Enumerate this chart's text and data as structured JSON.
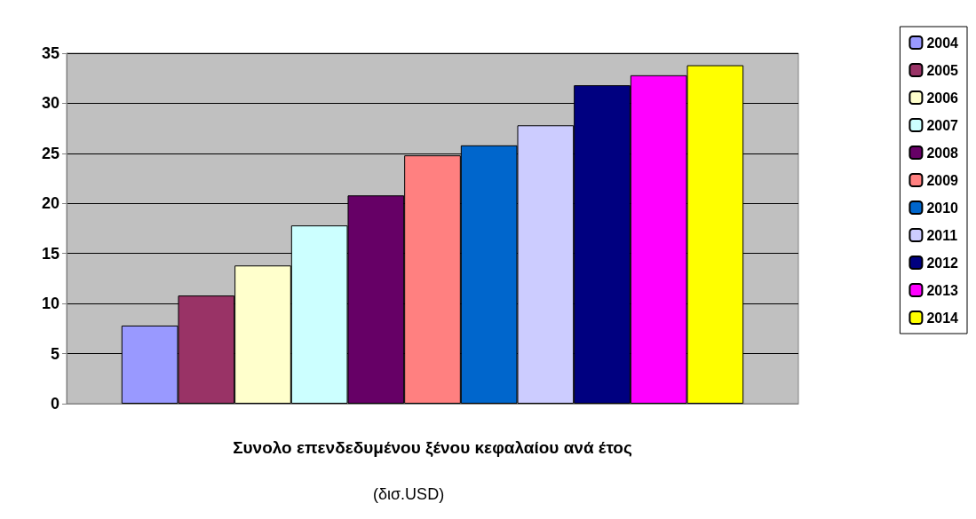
{
  "chart_data": {
    "type": "bar",
    "xlabel": "Συνολο επενδεδυμένου ξένου κεφαλαίου ανά έτος",
    "categories": [
      null
    ],
    "series": [
      {
        "name": "2004",
        "color": "#9999ff",
        "values": [
          7.8
        ]
      },
      {
        "name": "2005",
        "color": "#993366",
        "values": [
          10.8
        ]
      },
      {
        "name": "2006",
        "color": "#ffffcc",
        "values": [
          13.8
        ]
      },
      {
        "name": "2007",
        "color": "#ccffff",
        "values": [
          17.8
        ]
      },
      {
        "name": "2008",
        "color": "#660066",
        "values": [
          20.8
        ]
      },
      {
        "name": "2009",
        "color": "#ff8080",
        "values": [
          24.8
        ]
      },
      {
        "name": "2010",
        "color": "#0066cc",
        "values": [
          25.8
        ]
      },
      {
        "name": "2011",
        "color": "#ccccff",
        "values": [
          27.8
        ]
      },
      {
        "name": "2012",
        "color": "#000080",
        "values": [
          31.8
        ]
      },
      {
        "name": "2013",
        "color": "#ff00ff",
        "values": [
          32.8
        ]
      },
      {
        "name": "2014",
        "color": "#ffff00",
        "values": [
          33.8
        ]
      }
    ],
    "ylim": [
      0,
      35
    ],
    "yticks": [
      0,
      5,
      10,
      15,
      20,
      25,
      30,
      35
    ],
    "grid": "y",
    "legend": "right",
    "annotations": [
      "(δισ.USD)"
    ]
  }
}
